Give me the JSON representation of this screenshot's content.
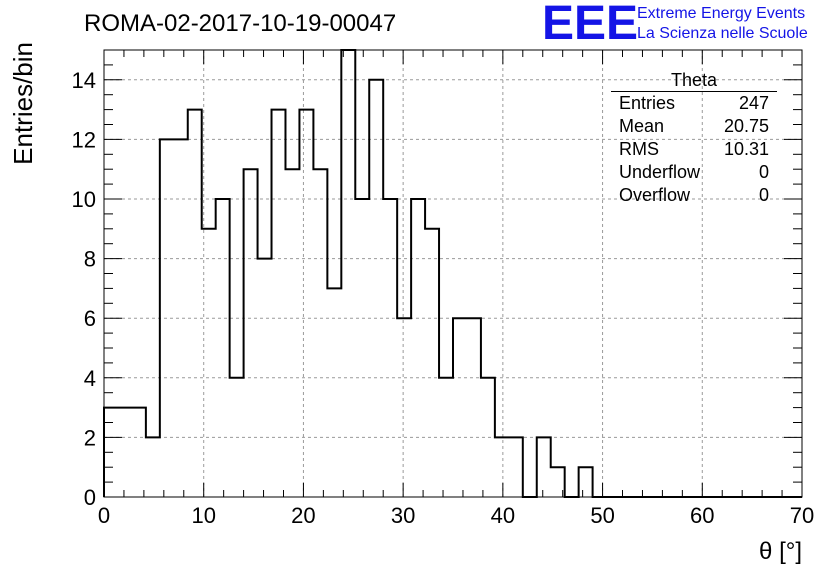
{
  "title": "ROMA-02-2017-10-19-00047",
  "logo": {
    "mark": "EEE",
    "line1": "Extreme Energy Events",
    "line2": "La Scienza nelle Scuole",
    "color": "#1414e6"
  },
  "stats": {
    "title": "Theta",
    "rows": [
      {
        "label": "Entries",
        "value": "247"
      },
      {
        "label": "Mean",
        "value": "20.75"
      },
      {
        "label": "RMS",
        "value": "10.31"
      },
      {
        "label": "Underflow",
        "value": "0"
      },
      {
        "label": "Overflow",
        "value": "0"
      }
    ]
  },
  "chart_data": {
    "type": "bar",
    "style": "step-histogram",
    "title": "ROMA-02-2017-10-19-00047",
    "xlabel": "θ [°]",
    "ylabel": "Entries/bin",
    "xlim": [
      0,
      70
    ],
    "ylim": [
      0,
      15
    ],
    "xticks": [
      0,
      10,
      20,
      30,
      40,
      50,
      60,
      70
    ],
    "yticks": [
      0,
      2,
      4,
      6,
      8,
      10,
      12,
      14
    ],
    "grid": true,
    "bin_width": 1.4,
    "bin_start": 0,
    "values": [
      3,
      3,
      3,
      2,
      12,
      12,
      13,
      9,
      10,
      4,
      11,
      8,
      13,
      11,
      13,
      11,
      7,
      15,
      10,
      14,
      10,
      6,
      10,
      9,
      4,
      6,
      6,
      4,
      2,
      2,
      0,
      2,
      1,
      0,
      1,
      0,
      0,
      0,
      0,
      0,
      0,
      0,
      0,
      0,
      0,
      0,
      0,
      0,
      0,
      0
    ],
    "line_color": "#000000",
    "grid_color": "#9a9a9a"
  }
}
